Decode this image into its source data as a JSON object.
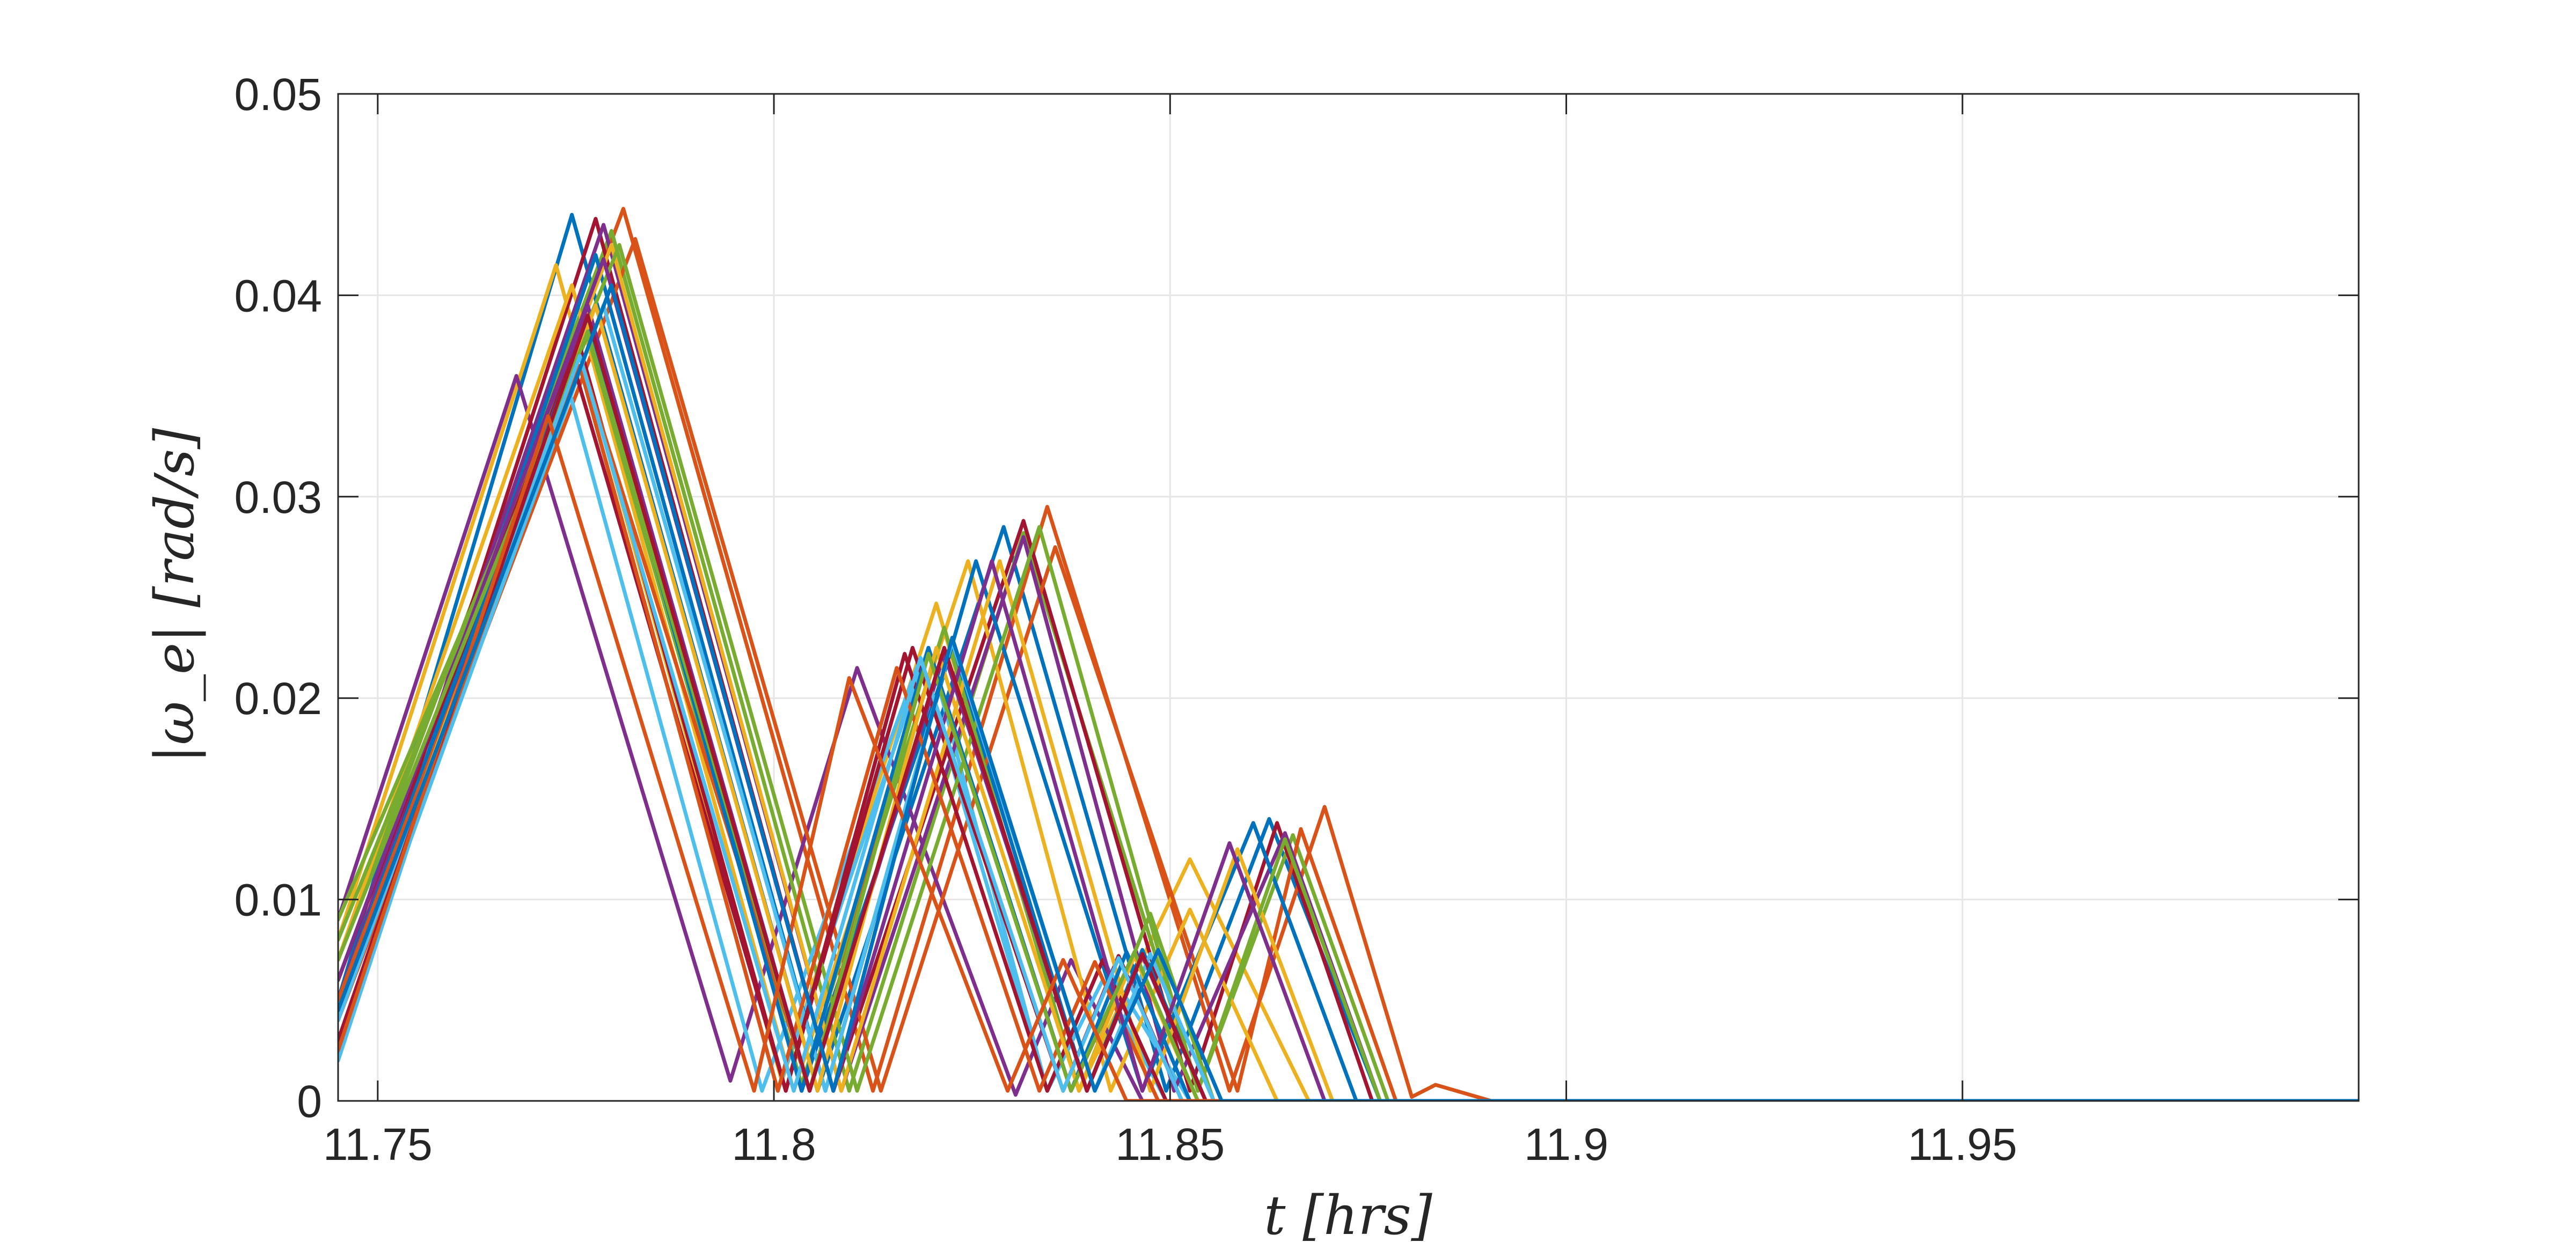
{
  "chart_data": {
    "type": "line",
    "title": "",
    "xlabel": "t [hrs]",
    "ylabel": "|ω_e| [rad/s]",
    "xlim": [
      11.745,
      12.0
    ],
    "ylim": [
      0,
      0.05
    ],
    "grid": true,
    "legend": "none",
    "x_ticks": [
      {
        "value": 11.75,
        "label": "11.75"
      },
      {
        "value": 11.8,
        "label": "11.8"
      },
      {
        "value": 11.85,
        "label": "11.85"
      },
      {
        "value": 11.9,
        "label": "11.9"
      },
      {
        "value": 11.95,
        "label": "11.95"
      }
    ],
    "y_ticks": [
      {
        "value": 0,
        "label": "0"
      },
      {
        "value": 0.01,
        "label": "0.01"
      },
      {
        "value": 0.02,
        "label": "0.02"
      },
      {
        "value": 0.03,
        "label": "0.03"
      },
      {
        "value": 0.04,
        "label": "0.04"
      },
      {
        "value": 0.05,
        "label": "0.05"
      }
    ],
    "palette": [
      "#0072BD",
      "#D95319",
      "#EDB120",
      "#7E2F8E",
      "#77AC30",
      "#4DBEEE",
      "#A2142F"
    ],
    "series": [
      {
        "color": "#0072BD",
        "points": [
          [
            11.745,
            0.005
          ],
          [
            11.7745,
            0.044
          ],
          [
            11.8055,
            0.0005
          ],
          [
            11.829,
            0.0285
          ],
          [
            11.8495,
            0.0005
          ],
          [
            11.8625,
            0.014
          ],
          [
            11.8765,
            0.0
          ],
          [
            12.0,
            0.0
          ]
        ]
      },
      {
        "color": "#D95319",
        "points": [
          [
            11.745,
            0.006
          ],
          [
            11.781,
            0.0443
          ],
          [
            11.8125,
            0.0005
          ],
          [
            11.8345,
            0.0295
          ],
          [
            11.8575,
            0.0005
          ],
          [
            11.8695,
            0.0146
          ],
          [
            11.8805,
            0.0002
          ],
          [
            11.8835,
            0.0008
          ],
          [
            11.8905,
            0.0
          ],
          [
            12.0,
            0.0
          ]
        ]
      },
      {
        "color": "#EDB120",
        "points": [
          [
            11.745,
            0.008
          ],
          [
            11.7725,
            0.0415
          ],
          [
            11.801,
            0.001
          ],
          [
            11.8205,
            0.0247
          ],
          [
            11.8385,
            0.0005
          ],
          [
            11.8525,
            0.012
          ],
          [
            11.8675,
            0.0
          ],
          [
            12.0,
            0.0
          ]
        ]
      },
      {
        "color": "#7E2F8E",
        "points": [
          [
            11.745,
            0.009
          ],
          [
            11.7675,
            0.036
          ],
          [
            11.7945,
            0.001
          ],
          [
            11.8105,
            0.0215
          ],
          [
            11.8305,
            0.0003
          ],
          [
            11.8375,
            0.007
          ],
          [
            11.8465,
            0.0
          ],
          [
            12.0,
            0.0
          ]
        ]
      },
      {
        "color": "#77AC30",
        "points": [
          [
            11.745,
            0.007
          ],
          [
            11.7795,
            0.0432
          ],
          [
            11.8095,
            0.0005
          ],
          [
            11.8315,
            0.0282
          ],
          [
            11.8535,
            0.0005
          ],
          [
            11.8655,
            0.0132
          ],
          [
            11.8775,
            0.0
          ],
          [
            12.0,
            0.0
          ]
        ]
      },
      {
        "color": "#4DBEEE",
        "points": [
          [
            11.745,
            0.003
          ],
          [
            11.7755,
            0.0365
          ],
          [
            11.8005,
            0.0005
          ],
          [
            11.8195,
            0.0225
          ],
          [
            11.8345,
            0.0005
          ],
          [
            11.8415,
            0.007
          ],
          [
            11.8525,
            0.0
          ],
          [
            12.0,
            0.0
          ]
        ]
      },
      {
        "color": "#A2142F",
        "points": [
          [
            11.745,
            0.004
          ],
          [
            11.7775,
            0.0438
          ],
          [
            11.8075,
            0.0005
          ],
          [
            11.8315,
            0.0288
          ],
          [
            11.8525,
            0.0005
          ],
          [
            11.8635,
            0.0138
          ],
          [
            11.8755,
            0.0
          ],
          [
            12.0,
            0.0
          ]
        ]
      },
      {
        "color": "#0072BD",
        "points": [
          [
            11.745,
            0.006
          ],
          [
            11.7765,
            0.0395
          ],
          [
            11.8035,
            0.0005
          ],
          [
            11.8225,
            0.0225
          ],
          [
            11.8395,
            0.0005
          ],
          [
            11.8465,
            0.0075
          ],
          [
            11.8545,
            0.0
          ],
          [
            12.0,
            0.0
          ]
        ]
      },
      {
        "color": "#D95319",
        "points": [
          [
            11.745,
            0.004
          ],
          [
            11.7825,
            0.0428
          ],
          [
            11.8135,
            0.0005
          ],
          [
            11.8355,
            0.0275
          ],
          [
            11.8585,
            0.0005
          ],
          [
            11.8665,
            0.0135
          ],
          [
            11.8785,
            0.0
          ],
          [
            12.0,
            0.0
          ]
        ]
      },
      {
        "color": "#EDB120",
        "points": [
          [
            11.745,
            0.007
          ],
          [
            11.7745,
            0.0405
          ],
          [
            11.8025,
            0.0005
          ],
          [
            11.8245,
            0.0268
          ],
          [
            11.8425,
            0.0005
          ],
          [
            11.8525,
            0.0095
          ],
          [
            11.8635,
            0.0
          ],
          [
            12.0,
            0.0
          ]
        ]
      },
      {
        "color": "#7E2F8E",
        "points": [
          [
            11.745,
            0.005
          ],
          [
            11.7785,
            0.0435
          ],
          [
            11.8085,
            0.0005
          ],
          [
            11.8315,
            0.028
          ],
          [
            11.8505,
            0.0005
          ],
          [
            11.8645,
            0.0133
          ],
          [
            11.8765,
            0.0
          ],
          [
            12.0,
            0.0
          ]
        ]
      },
      {
        "color": "#77AC30",
        "points": [
          [
            11.745,
            0.009
          ],
          [
            11.7765,
            0.038
          ],
          [
            11.8035,
            0.0008
          ],
          [
            11.8215,
            0.0235
          ],
          [
            11.8385,
            0.0005
          ],
          [
            11.8475,
            0.0093
          ],
          [
            11.8555,
            0.0
          ],
          [
            12.0,
            0.0
          ]
        ]
      },
      {
        "color": "#4DBEEE",
        "points": [
          [
            11.745,
            0.002
          ],
          [
            11.7735,
            0.0362
          ],
          [
            11.7985,
            0.0005
          ],
          [
            11.8185,
            0.022
          ],
          [
            11.8345,
            0.0005
          ],
          [
            11.8415,
            0.006
          ],
          [
            11.8495,
            0.0
          ],
          [
            12.0,
            0.0
          ]
        ]
      },
      {
        "color": "#A2142F",
        "points": [
          [
            11.745,
            0.003
          ],
          [
            11.7755,
            0.0375
          ],
          [
            11.8015,
            0.0005
          ],
          [
            11.8175,
            0.0225
          ],
          [
            11.8365,
            0.0005
          ],
          [
            11.8435,
            0.0072
          ],
          [
            11.8515,
            0.0
          ],
          [
            12.0,
            0.0
          ]
        ]
      },
      {
        "color": "#0072BD",
        "points": [
          [
            11.745,
            0.004
          ],
          [
            11.7775,
            0.042
          ],
          [
            11.8065,
            0.0005
          ],
          [
            11.8255,
            0.0268
          ],
          [
            11.8465,
            0.0005
          ],
          [
            11.8605,
            0.0138
          ],
          [
            11.8735,
            0.0
          ],
          [
            12.0,
            0.0
          ]
        ]
      },
      {
        "color": "#D95319",
        "points": [
          [
            11.745,
            0.003
          ],
          [
            11.7755,
            0.037
          ],
          [
            11.8045,
            0.0005
          ],
          [
            11.8195,
            0.0225
          ],
          [
            11.8375,
            0.0005
          ],
          [
            11.8455,
            0.0073
          ],
          [
            11.8535,
            0.0
          ],
          [
            12.0,
            0.0
          ]
        ]
      },
      {
        "color": "#EDB120",
        "points": [
          [
            11.745,
            0.006
          ],
          [
            11.7795,
            0.0425
          ],
          [
            11.8085,
            0.0005
          ],
          [
            11.8285,
            0.0268
          ],
          [
            11.8475,
            0.0005
          ],
          [
            11.8585,
            0.0125
          ],
          [
            11.8705,
            0.0
          ],
          [
            12.0,
            0.0
          ]
        ]
      },
      {
        "color": "#7E2F8E",
        "points": [
          [
            11.745,
            0.004
          ],
          [
            11.7765,
            0.0395
          ],
          [
            11.8045,
            0.0005
          ],
          [
            11.8215,
            0.0222
          ],
          [
            11.8395,
            0.0005
          ],
          [
            11.8465,
            0.0072
          ],
          [
            11.8545,
            0.0
          ],
          [
            12.0,
            0.0
          ]
        ]
      },
      {
        "color": "#77AC30",
        "points": [
          [
            11.745,
            0.008
          ],
          [
            11.7805,
            0.0425
          ],
          [
            11.8105,
            0.0005
          ],
          [
            11.8335,
            0.0285
          ],
          [
            11.8535,
            0.0005
          ],
          [
            11.8645,
            0.013
          ],
          [
            11.8765,
            0.0
          ],
          [
            12.0,
            0.0
          ]
        ]
      },
      {
        "color": "#4DBEEE",
        "points": [
          [
            11.745,
            0.003
          ],
          [
            11.7785,
            0.0395
          ],
          [
            11.8065,
            0.0005
          ],
          [
            11.8225,
            0.0228
          ],
          [
            11.8405,
            0.0005
          ],
          [
            11.8475,
            0.0073
          ],
          [
            11.8555,
            0.0
          ],
          [
            12.0,
            0.0
          ]
        ]
      },
      {
        "color": "#A2142F",
        "points": [
          [
            11.745,
            0.006
          ],
          [
            11.7745,
            0.0368
          ],
          [
            11.8015,
            0.0005
          ],
          [
            11.8165,
            0.0222
          ],
          [
            11.8345,
            0.0005
          ],
          [
            11.8415,
            0.007
          ],
          [
            11.8495,
            0.0
          ],
          [
            12.0,
            0.0
          ]
        ]
      },
      {
        "color": "#0072BD",
        "points": [
          [
            11.745,
            0.005
          ],
          [
            11.7765,
            0.0388
          ],
          [
            11.8035,
            0.0005
          ],
          [
            11.8195,
            0.0225
          ],
          [
            11.8375,
            0.0005
          ],
          [
            11.8445,
            0.0074
          ],
          [
            11.8525,
            0.0
          ],
          [
            12.0,
            0.0
          ]
        ]
      },
      {
        "color": "#D95319",
        "points": [
          [
            11.745,
            0.005
          ],
          [
            11.7755,
            0.0365
          ],
          [
            11.8005,
            0.0005
          ],
          [
            11.8155,
            0.0215
          ],
          [
            11.8335,
            0.0005
          ],
          [
            11.8405,
            0.0069
          ],
          [
            11.8485,
            0.0
          ],
          [
            12.0,
            0.0
          ]
        ]
      },
      {
        "color": "#EDB120",
        "points": [
          [
            11.745,
            0.004
          ],
          [
            11.7775,
            0.0395
          ],
          [
            11.8055,
            0.0005
          ],
          [
            11.8205,
            0.0225
          ],
          [
            11.8385,
            0.0005
          ],
          [
            11.8455,
            0.0072
          ],
          [
            11.8535,
            0.0
          ],
          [
            12.0,
            0.0
          ]
        ]
      },
      {
        "color": "#7E2F8E",
        "points": [
          [
            11.745,
            0.006
          ],
          [
            11.7785,
            0.0418
          ],
          [
            11.8075,
            0.0005
          ],
          [
            11.8275,
            0.0268
          ],
          [
            11.8465,
            0.0005
          ],
          [
            11.8575,
            0.0128
          ],
          [
            11.8695,
            0.0
          ],
          [
            12.0,
            0.0
          ]
        ]
      },
      {
        "color": "#77AC30",
        "points": [
          [
            11.745,
            0.007
          ],
          [
            11.7765,
            0.0382
          ],
          [
            11.8045,
            0.0005
          ],
          [
            11.8195,
            0.0222
          ],
          [
            11.8375,
            0.0005
          ],
          [
            11.8455,
            0.0074
          ],
          [
            11.8535,
            0.0
          ],
          [
            12.0,
            0.0
          ]
        ]
      },
      {
        "color": "#4DBEEE",
        "points": [
          [
            11.745,
            0.004
          ],
          [
            11.7755,
            0.037
          ],
          [
            11.8025,
            0.0005
          ],
          [
            11.8185,
            0.022
          ],
          [
            11.8365,
            0.0005
          ],
          [
            11.8435,
            0.0071
          ],
          [
            11.8515,
            0.0
          ],
          [
            12.0,
            0.0
          ]
        ]
      },
      {
        "color": "#A2142F",
        "points": [
          [
            11.745,
            0.003
          ],
          [
            11.7765,
            0.039
          ],
          [
            11.8045,
            0.0005
          ],
          [
            11.8215,
            0.0225
          ],
          [
            11.8395,
            0.0005
          ],
          [
            11.8465,
            0.0073
          ],
          [
            11.8545,
            0.0
          ],
          [
            12.0,
            0.0
          ]
        ]
      },
      {
        "color": "#D95319",
        "points": [
          [
            11.745,
            0.0025
          ],
          [
            11.7715,
            0.034
          ],
          [
            11.7975,
            0.0005
          ],
          [
            11.8095,
            0.021
          ],
          [
            11.8295,
            0.0005
          ],
          [
            11.8365,
            0.007
          ],
          [
            11.8445,
            0.0
          ],
          [
            12.0,
            0.0
          ]
        ]
      },
      {
        "color": "#0072BD",
        "points": [
          [
            11.745,
            0.0045
          ],
          [
            11.7795,
            0.0405
          ],
          [
            11.8075,
            0.0005
          ],
          [
            11.8225,
            0.023
          ],
          [
            11.8405,
            0.0005
          ],
          [
            11.8485,
            0.0075
          ],
          [
            11.8565,
            0.0
          ],
          [
            12.0,
            0.0
          ]
        ]
      }
    ]
  }
}
